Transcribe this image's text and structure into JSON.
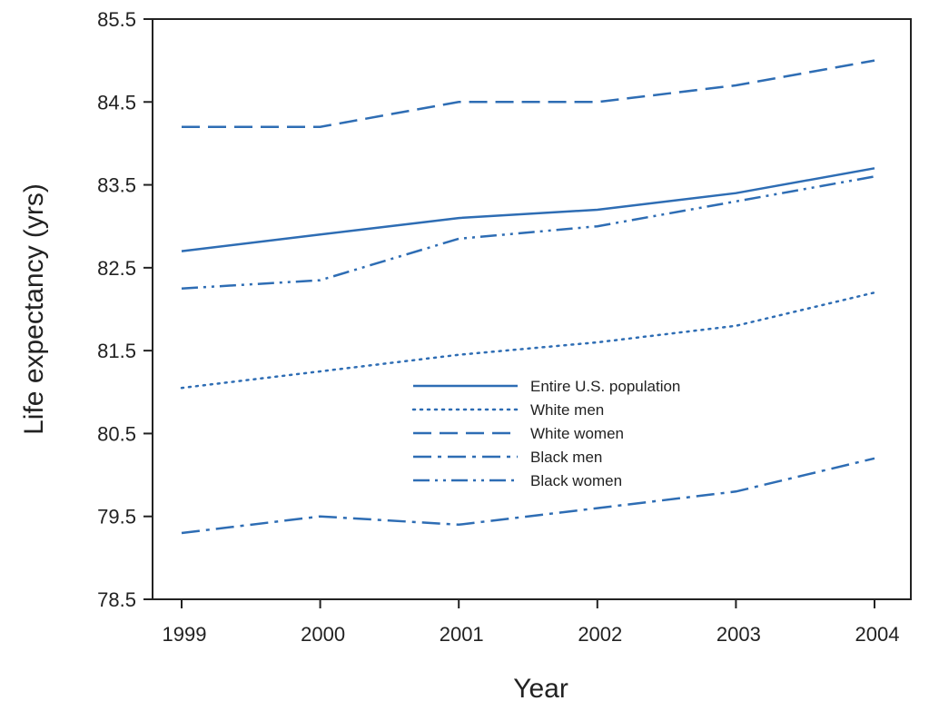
{
  "chart_data": {
    "type": "line",
    "xlabel": "Year",
    "ylabel": "Life expectancy (yrs)",
    "x": [
      1999,
      2000,
      2001,
      2002,
      2003,
      2004
    ],
    "x_ticks": [
      "1999",
      "2000",
      "2001",
      "2002",
      "2003",
      "2004"
    ],
    "y_ticks": [
      "78.5",
      "79.5",
      "80.5",
      "81.5",
      "82.5",
      "83.5",
      "84.5",
      "85.5"
    ],
    "ylim": [
      78.5,
      85.5
    ],
    "grid": false,
    "legend_position": "center",
    "color": "#2e6db4",
    "series": [
      {
        "name": "Entire U.S. population",
        "dash": "solid",
        "values": [
          82.7,
          82.9,
          83.1,
          83.2,
          83.4,
          83.7
        ]
      },
      {
        "name": "White men",
        "dash": "dotted",
        "values": [
          81.05,
          81.25,
          81.45,
          81.6,
          81.8,
          82.2
        ]
      },
      {
        "name": "White women",
        "dash": "dashed",
        "values": [
          84.2,
          84.2,
          84.5,
          84.5,
          84.7,
          85.0
        ]
      },
      {
        "name": "Black men",
        "dash": "dashdot",
        "values": [
          79.3,
          79.5,
          79.4,
          79.6,
          79.8,
          80.2
        ]
      },
      {
        "name": "Black women",
        "dash": "dashdotdot",
        "values": [
          82.25,
          82.35,
          82.85,
          83.0,
          83.3,
          83.6
        ]
      }
    ]
  }
}
